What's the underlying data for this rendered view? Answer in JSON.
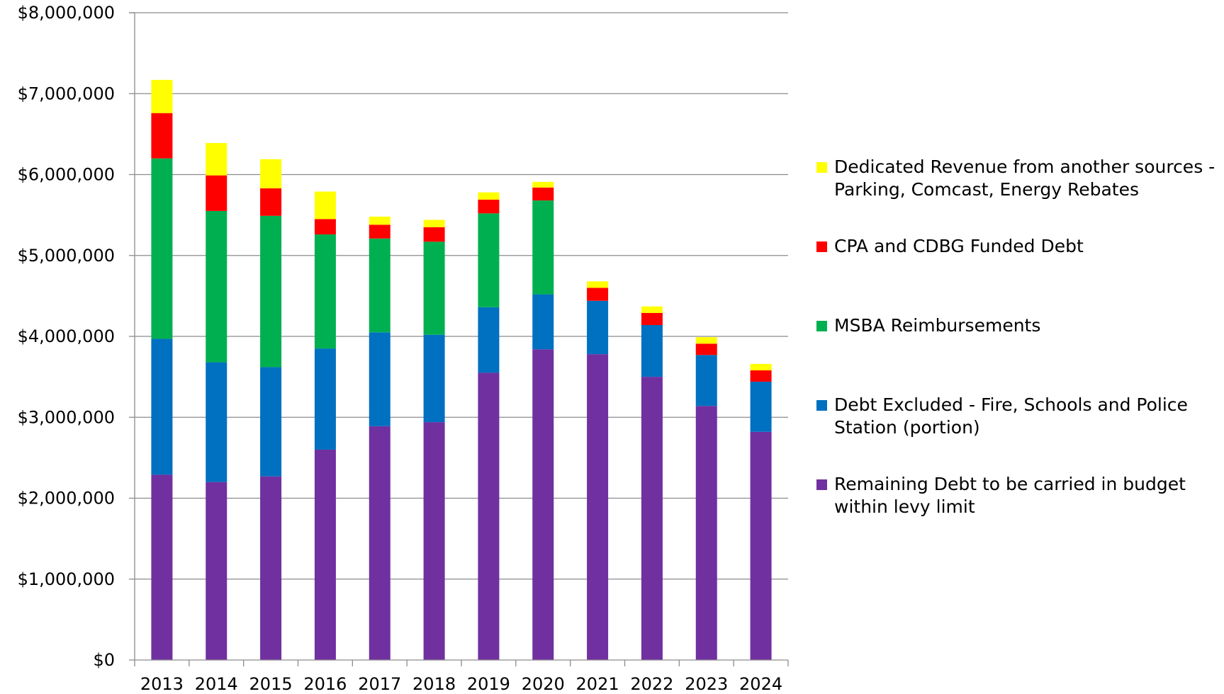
{
  "chart_data": {
    "type": "bar",
    "stacked": true,
    "categories": [
      "2013",
      "2014",
      "2015",
      "2016",
      "2017",
      "2018",
      "2019",
      "2020",
      "2021",
      "2022",
      "2023",
      "2024"
    ],
    "ylim": [
      0,
      8000000
    ],
    "yticks": [
      0,
      1000000,
      2000000,
      3000000,
      4000000,
      5000000,
      6000000,
      7000000,
      8000000
    ],
    "ytick_labels": [
      "$0",
      "$1,000,000",
      "$2,000,000",
      "$3,000,000",
      "$4,000,000",
      "$5,000,000",
      "$6,000,000",
      "$7,000,000",
      "$8,000,000"
    ],
    "grid": true,
    "legend_position": "right",
    "series": [
      {
        "name": "Remaining Debt to be carried in budget within levy limit",
        "color": "#7030A0",
        "values": [
          2290000,
          2200000,
          2270000,
          2600000,
          2890000,
          2940000,
          3550000,
          3840000,
          3780000,
          3500000,
          3140000,
          2820000
        ]
      },
      {
        "name": "Debt Excluded - Fire, Schools and Police Station (portion)",
        "color": "#0070C0",
        "values": [
          1680000,
          1480000,
          1350000,
          1250000,
          1160000,
          1080000,
          810000,
          680000,
          660000,
          640000,
          630000,
          620000
        ]
      },
      {
        "name": "MSBA Reimbursements",
        "color": "#00B050",
        "values": [
          2230000,
          1870000,
          1870000,
          1410000,
          1160000,
          1150000,
          1160000,
          1160000,
          0,
          0,
          0,
          0
        ]
      },
      {
        "name": "CPA and CDBG Funded Debt",
        "color": "#FF0000",
        "values": [
          560000,
          440000,
          340000,
          190000,
          170000,
          180000,
          170000,
          160000,
          160000,
          150000,
          140000,
          140000
        ]
      },
      {
        "name": "Dedicated Revenue from another sources  - Parking, Comcast, Energy Rebates",
        "color": "#FFFF00",
        "values": [
          410000,
          400000,
          360000,
          340000,
          100000,
          90000,
          90000,
          70000,
          80000,
          80000,
          80000,
          80000
        ]
      }
    ]
  }
}
